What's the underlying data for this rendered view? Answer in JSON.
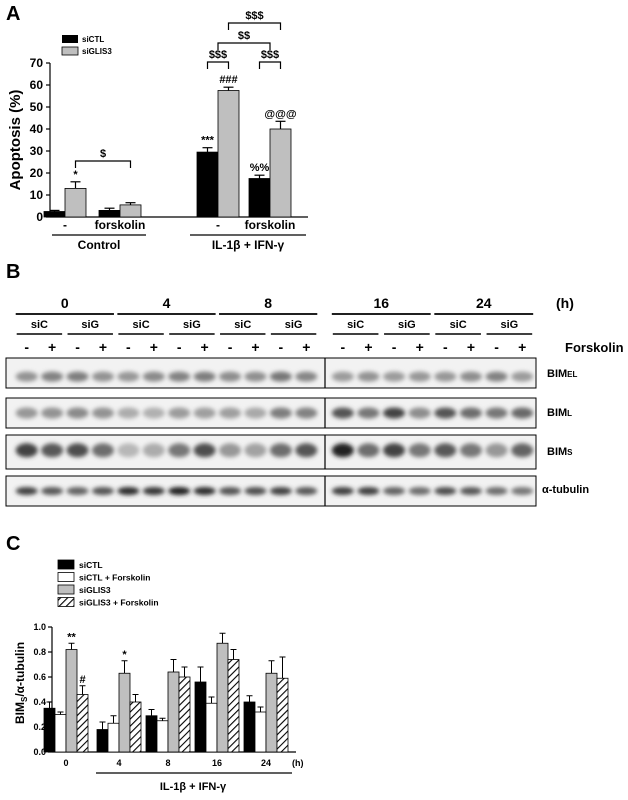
{
  "panels": {
    "a": "A",
    "b": "B",
    "c": "C"
  },
  "chart_data": [
    {
      "type": "bar",
      "panel": "A",
      "ylabel": "Apoptosis (%)",
      "ylim": [
        0,
        70
      ],
      "yticks": [
        "0",
        "10",
        "20",
        "30",
        "40",
        "50",
        "60",
        "70"
      ],
      "legend": {
        "placement": "top-left",
        "entries": [
          "siCTL",
          "siGLIS3"
        ]
      },
      "series": [
        {
          "name": "siCTL",
          "color": "#000000",
          "values": [
            2.5,
            3.0,
            29.5,
            17.5
          ],
          "errors": [
            0.5,
            1.0,
            2.0,
            1.5
          ]
        },
        {
          "name": "siGLIS3",
          "color": "#bfbfbf",
          "values": [
            13.0,
            5.5,
            57.5,
            40.0
          ],
          "errors": [
            3.0,
            1.0,
            1.5,
            3.5
          ]
        }
      ],
      "conditions": [
        "-",
        "forskolin",
        "-",
        "forskolin"
      ],
      "groups": [
        "Control",
        "IL-1β + IFN-γ"
      ],
      "bar_annotations": [
        {
          "series": 1,
          "index": 0,
          "text": "*"
        },
        {
          "series": 0,
          "index": 2,
          "text": "***"
        },
        {
          "series": 1,
          "index": 2,
          "text": "###"
        },
        {
          "series": 0,
          "index": 3,
          "text": "%%"
        },
        {
          "series": 1,
          "index": 3,
          "text": "@@@"
        }
      ],
      "brackets": [
        {
          "text": "$",
          "level": 1
        },
        {
          "text": "$$$",
          "level": 1
        },
        {
          "text": "$$$",
          "level": 1
        },
        {
          "text": "$$",
          "level": 2
        },
        {
          "text": "$$$",
          "level": 3
        }
      ]
    },
    {
      "type": "bar",
      "panel": "C",
      "ylabel": "BIMS/α-tubulin",
      "ylim": [
        0,
        1.0
      ],
      "yticks": [
        "0.0",
        "0.2",
        "0.4",
        "0.6",
        "0.8",
        "1.0"
      ],
      "categories": [
        "0",
        "4",
        "8",
        "16",
        "24"
      ],
      "x_unit": "(h)",
      "xlabel": "IL-1β + IFN-γ",
      "legend": {
        "placement": "top-left"
      },
      "series": [
        {
          "name": "siCTL",
          "fill": "#000000",
          "values": [
            0.35,
            0.18,
            0.29,
            0.56,
            0.4
          ],
          "errors": [
            0.05,
            0.06,
            0.05,
            0.12,
            0.05
          ]
        },
        {
          "name": "siCTL + Forskolin",
          "fill": "#ffffff",
          "values": [
            0.3,
            0.23,
            0.25,
            0.39,
            0.32
          ],
          "errors": [
            0.02,
            0.06,
            0.02,
            0.05,
            0.04
          ]
        },
        {
          "name": "siGLIS3",
          "fill": "#bfbfbf",
          "values": [
            0.82,
            0.63,
            0.64,
            0.87,
            0.63
          ],
          "errors": [
            0.05,
            0.1,
            0.1,
            0.08,
            0.1
          ]
        },
        {
          "name": "siGLIS3 + Forskolin",
          "fill": "hatch",
          "values": [
            0.46,
            0.4,
            0.6,
            0.74,
            0.59
          ],
          "errors": [
            0.07,
            0.06,
            0.08,
            0.08,
            0.17
          ]
        }
      ],
      "bar_annotations": [
        {
          "series": 2,
          "index": 0,
          "text": "**"
        },
        {
          "series": 3,
          "index": 0,
          "text": "#"
        },
        {
          "series": 2,
          "index": 1,
          "text": "*"
        }
      ]
    }
  ],
  "blot": {
    "time_points": [
      "0",
      "4",
      "8",
      "16",
      "24"
    ],
    "time_unit": "(h)",
    "sirna_labels": [
      "siC",
      "siG",
      "siC",
      "siG",
      "siC",
      "siG",
      "siC",
      "siG",
      "siC",
      "siG"
    ],
    "forskolin_signs": [
      "-",
      "+",
      "-",
      "+",
      "-",
      "+",
      "-",
      "+",
      "-",
      "+",
      "-",
      "+",
      "-",
      "+",
      "-",
      "+",
      "-",
      "+",
      "-",
      "+"
    ],
    "forskolin_label": "Forskolin",
    "bands": [
      "BIMEL",
      "BIML",
      "BIMS",
      "α-tubulin"
    ]
  }
}
